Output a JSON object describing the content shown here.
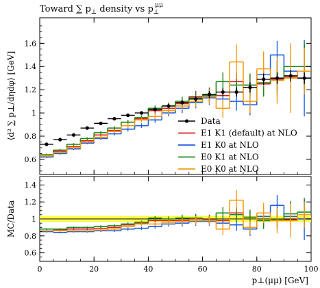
{
  "title": "Toward ∑ p⊥ density vs p⊥^μμ",
  "title_parts": {
    "main": "Toward ∑ p",
    "sub1": "⊥",
    "mid": " density vs p",
    "sub2": "⊥",
    "sup": "μμ"
  },
  "colors": {
    "data": "#000000",
    "E1K1": "#e31a1c",
    "E1K0": "#1f5fe0",
    "E0K1": "#1a8a1a",
    "E0K0": "#f39c12",
    "band_outer": "#ffff33",
    "band_inner": "#c8c800"
  },
  "chart_data": [
    {
      "type": "line",
      "panel": "main",
      "ylabel": "⟨d² ∑ p⊥/dηdφ⟩ [GeV]",
      "xlim": [
        0,
        100
      ],
      "ylim": [
        0.47,
        1.82
      ],
      "yticks": [
        0.6,
        0.8,
        1,
        1.2,
        1.4,
        1.6
      ],
      "ytick_labels": [
        "0.6",
        "0.8",
        "1",
        "1.2",
        "1.4",
        "1.6"
      ],
      "legend_position": "lower-right",
      "bin_edges": [
        0,
        5,
        10,
        15,
        20,
        25,
        30,
        35,
        40,
        45,
        50,
        55,
        60,
        65,
        70,
        75,
        80,
        85,
        90,
        95,
        100
      ],
      "data": {
        "name": "Data",
        "x": [
          2.5,
          7.5,
          12.5,
          17.5,
          22.5,
          27.5,
          32.5,
          37.5,
          42.5,
          47.5,
          52.5,
          57.5,
          62.5,
          67.5,
          72.5,
          77.5,
          82.5,
          87.5,
          92.5,
          97.5
        ],
        "y": [
          0.73,
          0.77,
          0.81,
          0.87,
          0.91,
          0.95,
          0.98,
          1.0,
          1.03,
          1.06,
          1.09,
          1.12,
          1.16,
          1.18,
          1.18,
          1.22,
          1.29,
          1.3,
          1.32,
          1.3
        ],
        "yerr": [
          0.01,
          0.01,
          0.01,
          0.01,
          0.01,
          0.01,
          0.012,
          0.015,
          0.015,
          0.02,
          0.02,
          0.025,
          0.03,
          0.035,
          0.04,
          0.045,
          0.05,
          0.05,
          0.05,
          0.05
        ]
      },
      "series": [
        {
          "name": "E1 K1 (default) at NLO",
          "color_key": "E1K1",
          "values": [
            0.63,
            0.67,
            0.71,
            0.76,
            0.81,
            0.85,
            0.92,
            0.95,
            1.02,
            1.04,
            1.08,
            1.14,
            1.16,
            1.15,
            1.27,
            1.24,
            1.25,
            1.29,
            1.31,
            1.3
          ],
          "err": [
            0.01,
            0.01,
            0.01,
            0.01,
            0.015,
            0.015,
            0.02,
            0.02,
            0.025,
            0.03,
            0.04,
            0.05,
            0.06,
            0.07,
            0.08,
            0.09,
            0.1,
            0.1,
            0.1,
            0.1
          ]
        },
        {
          "name": "E1 K0 at NLO",
          "color_key": "E1K0",
          "values": [
            0.62,
            0.65,
            0.69,
            0.74,
            0.78,
            0.82,
            0.86,
            0.89,
            0.94,
            1.0,
            1.04,
            1.09,
            1.13,
            1.12,
            1.1,
            1.07,
            1.33,
            1.5,
            1.36,
            1.3
          ],
          "err": [
            0.01,
            0.01,
            0.01,
            0.01,
            0.015,
            0.015,
            0.02,
            0.02,
            0.025,
            0.03,
            0.04,
            0.05,
            0.06,
            0.07,
            0.08,
            0.09,
            0.1,
            0.12,
            0.15,
            0.33
          ]
        },
        {
          "name": "E0 K1 at NLO",
          "color_key": "E0K1",
          "values": [
            0.64,
            0.68,
            0.73,
            0.78,
            0.83,
            0.87,
            0.92,
            0.96,
            1.04,
            1.06,
            1.1,
            1.13,
            1.15,
            1.27,
            1.24,
            1.24,
            1.26,
            1.3,
            1.4,
            1.4
          ],
          "err": [
            0.01,
            0.01,
            0.01,
            0.01,
            0.015,
            0.015,
            0.02,
            0.02,
            0.025,
            0.03,
            0.04,
            0.05,
            0.06,
            0.08,
            0.09,
            0.1,
            0.12,
            0.15,
            0.2,
            0.2
          ]
        },
        {
          "name": "E0 K0 at NLO",
          "color_key": "E0K0",
          "values": [
            0.63,
            0.66,
            0.7,
            0.75,
            0.79,
            0.84,
            0.89,
            0.94,
            0.97,
            1.02,
            1.06,
            1.1,
            1.14,
            1.04,
            1.44,
            1.1,
            1.38,
            1.28,
            1.3,
            1.36
          ],
          "err": [
            0.01,
            0.01,
            0.01,
            0.01,
            0.015,
            0.015,
            0.02,
            0.02,
            0.025,
            0.03,
            0.04,
            0.05,
            0.06,
            0.08,
            0.15,
            0.1,
            0.15,
            0.2,
            0.3,
            0.2
          ]
        }
      ]
    },
    {
      "type": "line",
      "panel": "ratio",
      "ylabel": "MC/Data",
      "xlabel": "p⊥(μμ) [GeV]",
      "xlim": [
        0,
        100
      ],
      "ylim": [
        0.5,
        1.5
      ],
      "yticks": [
        0.6,
        0.8,
        1,
        1.2,
        1.4
      ],
      "ytick_labels": [
        "0.6",
        "0.8",
        "1",
        "1.2",
        "1.4"
      ],
      "xticks": [
        0,
        20,
        40,
        60,
        80,
        100
      ],
      "xtick_labels": [
        "0",
        "20",
        "40",
        "60",
        "80",
        "100"
      ],
      "band": {
        "center": 1.0,
        "inner": 0.02,
        "outer": 0.035
      },
      "series": [
        {
          "name": "E1 K1 (default) at NLO",
          "color_key": "E1K1",
          "values": [
            0.86,
            0.87,
            0.88,
            0.88,
            0.89,
            0.9,
            0.93,
            0.95,
            0.98,
            0.98,
            0.98,
            1.0,
            1.0,
            0.98,
            1.07,
            1.02,
            0.98,
            0.99,
            0.99,
            1.0
          ],
          "err": [
            0.01,
            0.01,
            0.01,
            0.01,
            0.015,
            0.015,
            0.02,
            0.02,
            0.025,
            0.03,
            0.04,
            0.05,
            0.05,
            0.06,
            0.07,
            0.07,
            0.07,
            0.07,
            0.07,
            0.07
          ]
        },
        {
          "name": "E1 K0 at NLO",
          "color_key": "E1K0",
          "values": [
            0.85,
            0.84,
            0.85,
            0.85,
            0.86,
            0.86,
            0.88,
            0.89,
            0.91,
            0.94,
            0.95,
            0.97,
            0.97,
            0.95,
            0.93,
            0.88,
            1.03,
            1.16,
            1.03,
            1.0
          ],
          "err": [
            0.01,
            0.01,
            0.01,
            0.01,
            0.015,
            0.015,
            0.02,
            0.02,
            0.025,
            0.03,
            0.04,
            0.05,
            0.05,
            0.06,
            0.07,
            0.08,
            0.1,
            0.12,
            0.15,
            0.25
          ]
        },
        {
          "name": "E0 K1 at NLO",
          "color_key": "E0K1",
          "values": [
            0.88,
            0.88,
            0.9,
            0.9,
            0.91,
            0.92,
            0.94,
            0.96,
            1.01,
            1.0,
            1.01,
            1.01,
            0.99,
            1.07,
            1.05,
            1.02,
            0.98,
            1.0,
            1.06,
            1.08
          ],
          "err": [
            0.01,
            0.01,
            0.01,
            0.01,
            0.015,
            0.015,
            0.02,
            0.02,
            0.025,
            0.03,
            0.04,
            0.05,
            0.05,
            0.07,
            0.08,
            0.09,
            0.1,
            0.12,
            0.15,
            0.15
          ]
        },
        {
          "name": "E0 K0 at NLO",
          "color_key": "E0K0",
          "values": [
            0.86,
            0.86,
            0.86,
            0.86,
            0.87,
            0.88,
            0.91,
            0.94,
            0.94,
            0.96,
            0.97,
            0.98,
            0.98,
            0.88,
            1.22,
            0.9,
            1.07,
            0.98,
            0.98,
            1.05
          ],
          "err": [
            0.01,
            0.01,
            0.01,
            0.01,
            0.015,
            0.015,
            0.02,
            0.02,
            0.025,
            0.03,
            0.04,
            0.05,
            0.05,
            0.07,
            0.12,
            0.08,
            0.12,
            0.15,
            0.2,
            0.15
          ]
        }
      ]
    }
  ]
}
